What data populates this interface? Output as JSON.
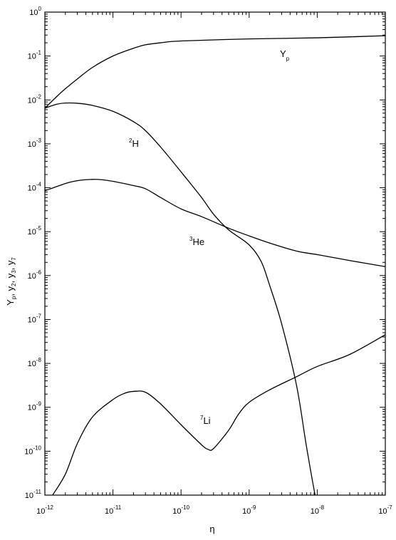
{
  "chart_data": {
    "type": "line",
    "title": "",
    "xlabel": "η",
    "ylabel": "Y_p, y_2, y_3, y_7",
    "x_scale": "log",
    "y_scale": "log",
    "xlim": [
      1e-12,
      1e-07
    ],
    "ylim": [
      1e-11,
      1
    ],
    "x_ticks": [
      {
        "base": "10",
        "exp": "-12"
      },
      {
        "base": "10",
        "exp": "-11"
      },
      {
        "base": "10",
        "exp": "-10"
      },
      {
        "base": "10",
        "exp": "-9"
      },
      {
        "base": "10",
        "exp": "-8"
      },
      {
        "base": "10",
        "exp": "-7"
      }
    ],
    "y_ticks": [
      {
        "base": "10",
        "exp": "0"
      },
      {
        "base": "10",
        "exp": "-1"
      },
      {
        "base": "10",
        "exp": "-2"
      },
      {
        "base": "10",
        "exp": "-3"
      },
      {
        "base": "10",
        "exp": "-4"
      },
      {
        "base": "10",
        "exp": "-5"
      },
      {
        "base": "10",
        "exp": "-6"
      },
      {
        "base": "10",
        "exp": "-7"
      },
      {
        "base": "10",
        "exp": "-8"
      },
      {
        "base": "10",
        "exp": "-9"
      },
      {
        "base": "10",
        "exp": "-10"
      },
      {
        "base": "10",
        "exp": "-11"
      }
    ],
    "grid": false,
    "series": [
      {
        "key": "yp",
        "label_main": "Y",
        "label_sub": "p",
        "label_sup": "",
        "points": [
          [
            1e-12,
            0.0065
          ],
          [
            1.5e-12,
            0.012
          ],
          [
            2e-12,
            0.018
          ],
          [
            3e-12,
            0.03
          ],
          [
            5e-12,
            0.055
          ],
          [
            1e-11,
            0.1
          ],
          [
            2e-11,
            0.15
          ],
          [
            3e-11,
            0.18
          ],
          [
            5e-11,
            0.2
          ],
          [
            1e-10,
            0.22
          ],
          [
            1e-09,
            0.245
          ],
          [
            1e-08,
            0.26
          ],
          [
            1e-07,
            0.29
          ]
        ]
      },
      {
        "key": "h2",
        "label_main": "H",
        "label_sub": "",
        "label_sup": "2",
        "points": [
          [
            1e-12,
            0.0065
          ],
          [
            1.5e-12,
            0.008
          ],
          [
            2e-12,
            0.0085
          ],
          [
            3e-12,
            0.0084
          ],
          [
            5e-12,
            0.0075
          ],
          [
            1e-11,
            0.0055
          ],
          [
            2e-11,
            0.0032
          ],
          [
            3e-11,
            0.002
          ],
          [
            5e-11,
            0.00085
          ],
          [
            1e-10,
            0.00023
          ],
          [
            2e-10,
            6e-05
          ],
          [
            3e-10,
            2.5e-05
          ],
          [
            5e-10,
            1.1e-05
          ],
          [
            1e-09,
            5e-06
          ],
          [
            1.5e-09,
            2.1e-06
          ],
          [
            2e-09,
            6e-07
          ],
          [
            3e-09,
            8e-08
          ],
          [
            5e-09,
            3e-09
          ],
          [
            7e-09,
            1.2e-10
          ],
          [
            1e-08,
            6e-12
          ],
          [
            1.1e-08,
            1e-11
          ]
        ]
      },
      {
        "key": "he3",
        "label_main": "He",
        "label_sub": "",
        "label_sup": "3",
        "points": [
          [
            1e-12,
            8.5e-05
          ],
          [
            2e-12,
            0.000125
          ],
          [
            3e-12,
            0.000145
          ],
          [
            5e-12,
            0.000155
          ],
          [
            7e-12,
            0.000152
          ],
          [
            1e-11,
            0.00014
          ],
          [
            2e-11,
            0.000112
          ],
          [
            3e-11,
            9.5e-05
          ],
          [
            5e-11,
            6e-05
          ],
          [
            1e-10,
            3.3e-05
          ],
          [
            2e-10,
            2.2e-05
          ],
          [
            5e-10,
            1.2e-05
          ],
          [
            1e-09,
            8e-06
          ],
          [
            2e-09,
            5.5e-06
          ],
          [
            5e-09,
            3.6e-06
          ],
          [
            1e-08,
            3e-06
          ],
          [
            3e-08,
            2.2e-06
          ],
          [
            1e-07,
            1.6e-06
          ]
        ]
      },
      {
        "key": "li7",
        "label_main": "Li",
        "label_sub": "",
        "label_sup": "7",
        "points": [
          [
            1.3e-12,
            1e-11
          ],
          [
            2e-12,
            3e-11
          ],
          [
            3e-12,
            1.5e-10
          ],
          [
            5e-12,
            6e-10
          ],
          [
            1e-11,
            1.5e-09
          ],
          [
            1.5e-11,
            2.1e-09
          ],
          [
            2e-11,
            2.3e-09
          ],
          [
            3e-11,
            2.2e-09
          ],
          [
            5e-11,
            1.2e-09
          ],
          [
            1e-10,
            4e-10
          ],
          [
            2e-10,
            1.4e-10
          ],
          [
            2.5e-10,
            1.1e-10
          ],
          [
            3e-10,
            1.15e-10
          ],
          [
            5e-10,
            3e-10
          ],
          [
            7e-10,
            7e-10
          ],
          [
            1e-09,
            1.3e-09
          ],
          [
            2e-09,
            2.5e-09
          ],
          [
            5e-09,
            5e-09
          ],
          [
            1e-08,
            8.5e-09
          ],
          [
            3e-08,
            1.6e-08
          ],
          [
            1e-07,
            4.5e-08
          ]
        ]
      }
    ]
  }
}
